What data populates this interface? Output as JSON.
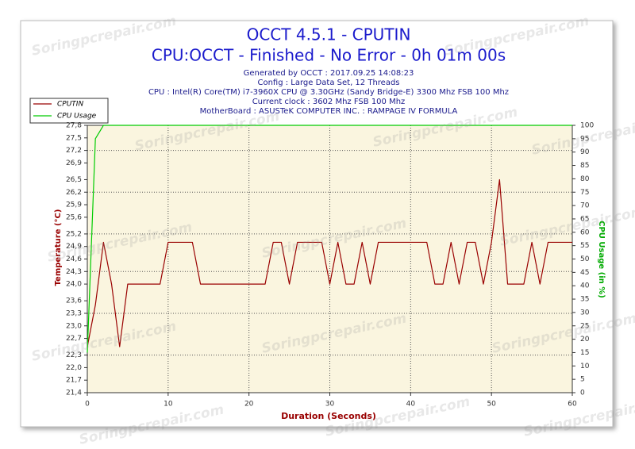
{
  "chart_data": {
    "type": "line",
    "title": "OCCT 4.5.1 - CPUTIN",
    "subtitle": "CPU:OCCT - Finished - No Error - 0h 01m 00s",
    "info_lines": [
      "Generated by OCCT : 2017.09.25 14:08:23",
      "Config : Large Data Set, 12 Threads",
      "CPU : Intel(R) Core(TM) i7-3960X CPU @ 3.30GHz (Sandy Bridge-E) 3300 Mhz FSB 100 Mhz",
      "Current clock : 3602 Mhz FSB 100 Mhz",
      "MotherBoard : ASUSTeK COMPUTER INC. : RAMPAGE IV FORMULA"
    ],
    "xlabel": "Duration (Seconds)",
    "ylabel": "Temperature (°C)",
    "y2label": "CPU Usage (in %)",
    "watermark": "Soringpcrepair.com",
    "x": [
      0,
      1,
      2,
      3,
      4,
      5,
      6,
      7,
      8,
      9,
      10,
      11,
      12,
      13,
      14,
      15,
      16,
      17,
      18,
      19,
      20,
      21,
      22,
      23,
      24,
      25,
      26,
      27,
      28,
      29,
      30,
      31,
      32,
      33,
      34,
      35,
      36,
      37,
      38,
      39,
      40,
      41,
      42,
      43,
      44,
      45,
      46,
      47,
      48,
      49,
      50,
      51,
      52,
      53,
      54,
      55,
      56,
      57,
      58,
      59,
      60
    ],
    "xlim": [
      0,
      60
    ],
    "xticks": [
      0,
      10,
      20,
      30,
      40,
      50,
      60
    ],
    "ylim": [
      21.4,
      27.8
    ],
    "yticks": [
      {
        "value": 21.4,
        "label": "21,4"
      },
      {
        "value": 21.7,
        "label": "21,7"
      },
      {
        "value": 22.0,
        "label": "22,0"
      },
      {
        "value": 22.3,
        "label": "22,3"
      },
      {
        "value": 22.7,
        "label": "22,7"
      },
      {
        "value": 23.0,
        "label": "23,0"
      },
      {
        "value": 23.3,
        "label": "23,3"
      },
      {
        "value": 23.6,
        "label": "23,6"
      },
      {
        "value": 24.0,
        "label": "24,0"
      },
      {
        "value": 24.3,
        "label": "24,3"
      },
      {
        "value": 24.6,
        "label": "24,6"
      },
      {
        "value": 24.9,
        "label": "24,9"
      },
      {
        "value": 25.2,
        "label": "25,2"
      },
      {
        "value": 25.6,
        "label": "25,6"
      },
      {
        "value": 25.9,
        "label": "25,9"
      },
      {
        "value": 26.2,
        "label": "26,2"
      },
      {
        "value": 26.5,
        "label": "26,5"
      },
      {
        "value": 26.9,
        "label": "26,9"
      },
      {
        "value": 27.2,
        "label": "27,2"
      },
      {
        "value": 27.5,
        "label": "27,5"
      },
      {
        "value": 27.8,
        "label": "27,8"
      }
    ],
    "y2lim": [
      0,
      100
    ],
    "y2ticks": [
      0,
      5,
      10,
      15,
      20,
      25,
      30,
      35,
      40,
      45,
      50,
      55,
      60,
      65,
      70,
      75,
      80,
      85,
      90,
      95,
      100
    ],
    "grid": true,
    "legend": "upper left",
    "series": [
      {
        "name": "CPUTIN",
        "color": "#990000",
        "values": [
          22.5,
          23.5,
          25.0,
          24.0,
          22.5,
          24.0,
          24.0,
          24.0,
          24.0,
          24.0,
          25.0,
          25.0,
          25.0,
          25.0,
          24.0,
          24.0,
          24.0,
          24.0,
          24.0,
          24.0,
          24.0,
          24.0,
          24.0,
          25.0,
          25.0,
          24.0,
          25.0,
          25.0,
          25.0,
          25.0,
          24.0,
          25.0,
          24.0,
          24.0,
          25.0,
          24.0,
          25.0,
          25.0,
          25.0,
          25.0,
          25.0,
          25.0,
          25.0,
          24.0,
          24.0,
          25.0,
          24.0,
          25.0,
          25.0,
          24.0,
          25.0,
          26.5,
          24.0,
          24.0,
          24.0,
          25.0,
          24.0,
          25.0,
          25.0,
          25.0,
          25.0
        ]
      },
      {
        "name": "CPU Usage",
        "color": "#00cc00",
        "axis": "y2",
        "values": [
          15,
          95,
          100,
          100,
          100,
          100,
          100,
          100,
          100,
          100,
          100,
          100,
          100,
          100,
          100,
          100,
          100,
          100,
          100,
          100,
          100,
          100,
          100,
          100,
          100,
          100,
          100,
          100,
          100,
          100,
          100,
          100,
          100,
          100,
          100,
          100,
          100,
          100,
          100,
          100,
          100,
          100,
          100,
          100,
          100,
          100,
          100,
          100,
          100,
          100,
          100,
          100,
          100,
          100,
          100,
          100,
          100,
          100,
          100,
          100,
          100
        ]
      }
    ]
  }
}
